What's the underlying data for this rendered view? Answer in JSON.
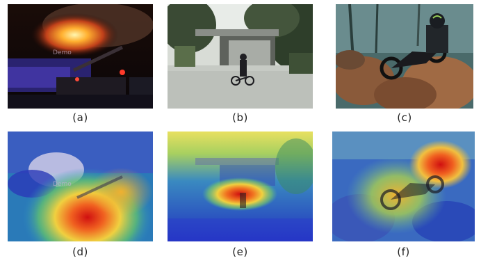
{
  "panels": [
    {
      "label": "(a)",
      "scene": "building fire at night with fire trucks",
      "overlay": "none"
    },
    {
      "label": "(b)",
      "scene": "person pushing bicycle through flooded road under bridge",
      "overlay": "none"
    },
    {
      "label": "(c)",
      "scene": "motorcyclist among large rocks in forest",
      "overlay": "none"
    },
    {
      "label": "(d)",
      "scene": "building fire at night with fire trucks",
      "overlay": "attention heatmap"
    },
    {
      "label": "(e)",
      "scene": "person pushing bicycle through flooded road under bridge",
      "overlay": "attention heatmap"
    },
    {
      "label": "(f)",
      "scene": "motorcyclist among large rocks in forest",
      "overlay": "attention heatmap"
    }
  ],
  "watermark": "Demo",
  "colors": {
    "heat_red": "#e0241c",
    "heat_yellow": "#f4e04a",
    "heat_blue": "#2536c8",
    "caption": "#222222"
  }
}
